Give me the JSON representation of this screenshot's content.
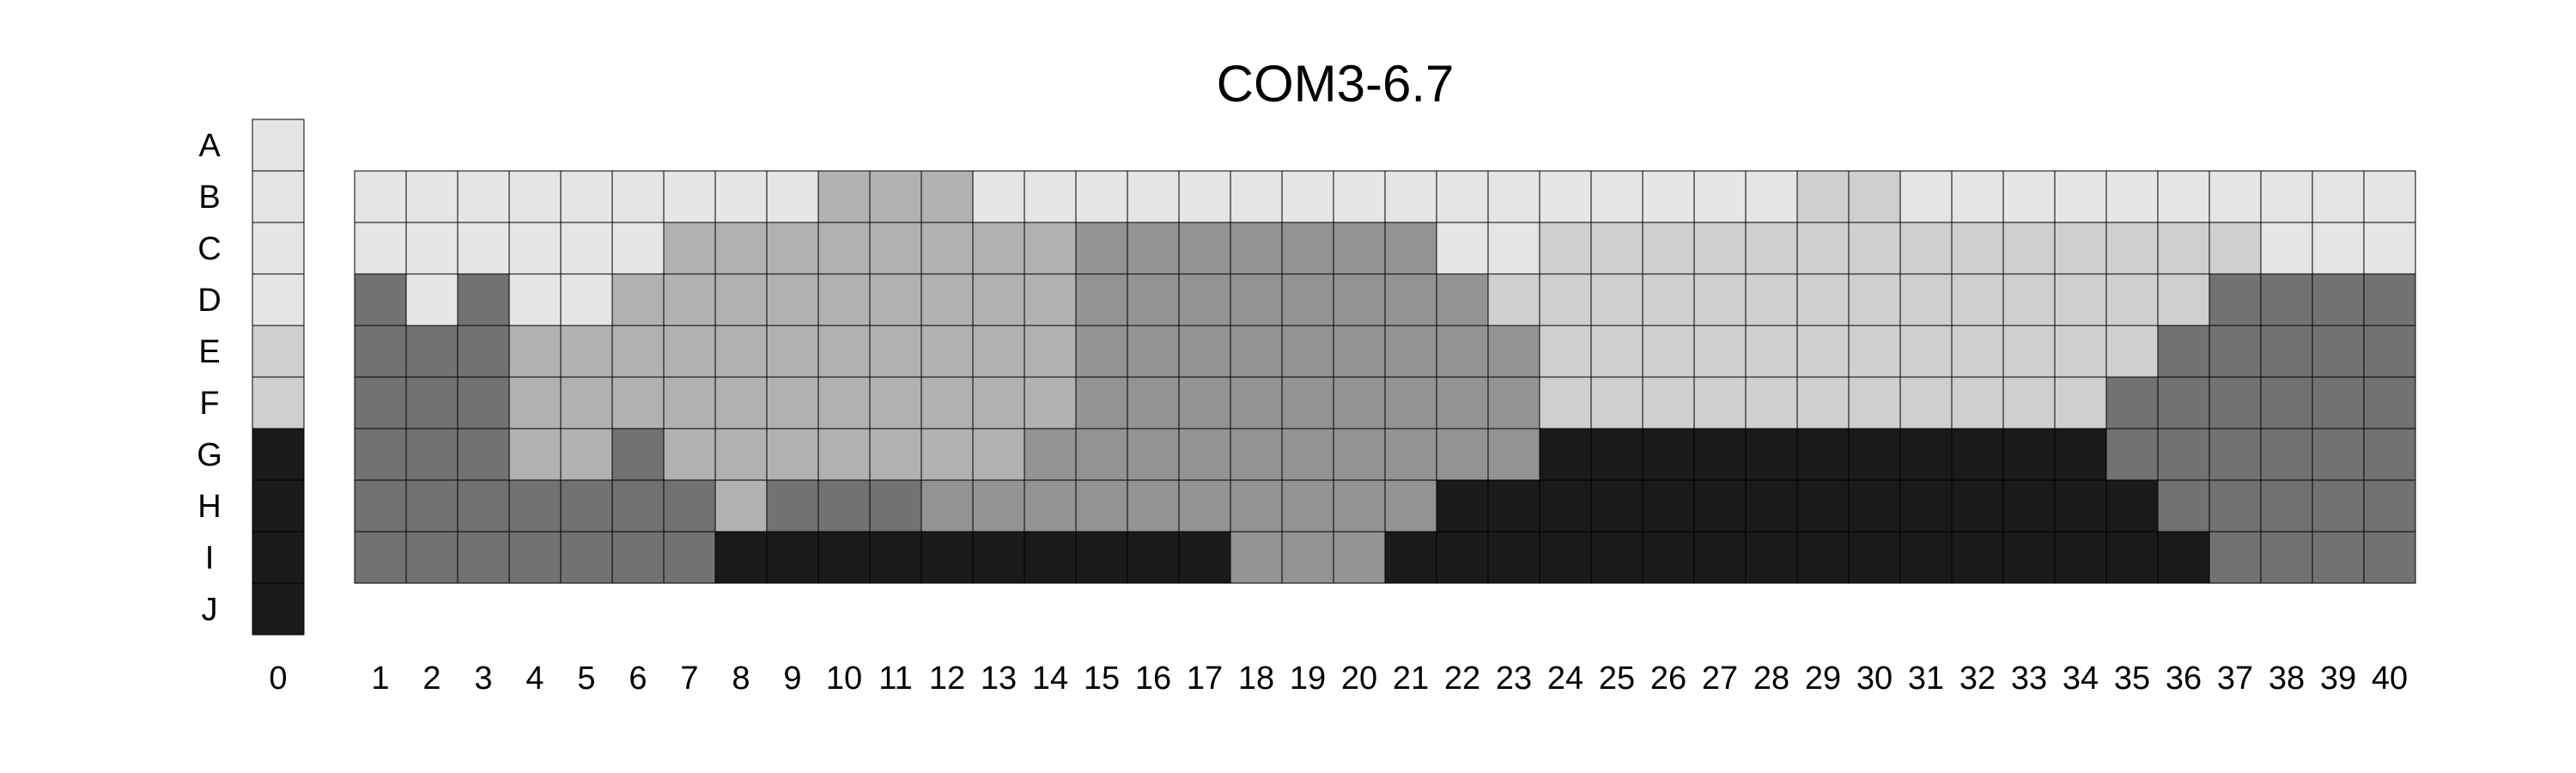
{
  "chart_data": {
    "type": "heatmap",
    "title": "COM3-6.7",
    "rows": [
      "A",
      "B",
      "C",
      "D",
      "E",
      "F",
      "G",
      "H",
      "I",
      "J"
    ],
    "control_column": {
      "label": "0",
      "values": [
        1,
        1,
        1,
        1,
        2,
        2,
        6,
        6,
        6,
        6
      ]
    },
    "columns": [
      "1",
      "2",
      "3",
      "4",
      "5",
      "6",
      "7",
      "8",
      "9",
      "10",
      "11",
      "12",
      "13",
      "14",
      "15",
      "16",
      "17",
      "18",
      "19",
      "20",
      "21",
      "22",
      "23",
      "24",
      "25",
      "26",
      "27",
      "28",
      "29",
      "30",
      "31",
      "32",
      "33",
      "34",
      "35",
      "36",
      "37",
      "38",
      "39",
      "40"
    ],
    "grid_rows": [
      "B",
      "C",
      "D",
      "E",
      "F",
      "G",
      "H",
      "I"
    ],
    "values": [
      [
        1,
        1,
        1,
        1,
        1,
        1,
        1,
        1,
        1,
        3,
        3,
        3,
        1,
        1,
        1,
        1,
        1,
        1,
        1,
        1,
        1,
        1,
        1,
        1,
        1,
        1,
        1,
        1,
        2,
        2,
        1,
        1,
        1,
        1,
        1,
        1,
        1,
        1,
        1,
        1
      ],
      [
        1,
        1,
        1,
        1,
        1,
        1,
        3,
        3,
        3,
        3,
        3,
        3,
        3,
        3,
        4,
        4,
        4,
        4,
        4,
        4,
        4,
        1,
        1,
        2,
        2,
        2,
        2,
        2,
        2,
        2,
        2,
        2,
        2,
        2,
        2,
        2,
        2,
        1,
        1,
        1
      ],
      [
        5,
        1,
        5,
        1,
        1,
        3,
        3,
        3,
        3,
        3,
        3,
        3,
        3,
        3,
        4,
        4,
        4,
        4,
        4,
        4,
        4,
        4,
        2,
        2,
        2,
        2,
        2,
        2,
        2,
        2,
        2,
        2,
        2,
        2,
        2,
        2,
        5,
        5,
        5,
        5
      ],
      [
        5,
        5,
        5,
        3,
        3,
        3,
        3,
        3,
        3,
        3,
        3,
        3,
        3,
        3,
        4,
        4,
        4,
        4,
        4,
        4,
        4,
        4,
        4,
        2,
        2,
        2,
        2,
        2,
        2,
        2,
        2,
        2,
        2,
        2,
        2,
        5,
        5,
        5,
        5,
        5
      ],
      [
        5,
        5,
        5,
        3,
        3,
        3,
        3,
        3,
        3,
        3,
        3,
        3,
        3,
        3,
        4,
        4,
        4,
        4,
        4,
        4,
        4,
        4,
        4,
        2,
        2,
        2,
        2,
        2,
        2,
        2,
        2,
        2,
        2,
        2,
        5,
        5,
        5,
        5,
        5,
        5
      ],
      [
        5,
        5,
        5,
        3,
        3,
        5,
        3,
        3,
        3,
        3,
        3,
        3,
        3,
        4,
        4,
        4,
        4,
        4,
        4,
        4,
        4,
        4,
        4,
        6,
        6,
        6,
        6,
        6,
        6,
        6,
        6,
        6,
        6,
        6,
        5,
        5,
        5,
        5,
        5,
        5
      ],
      [
        5,
        5,
        5,
        5,
        5,
        5,
        5,
        3,
        5,
        5,
        5,
        4,
        4,
        4,
        4,
        4,
        4,
        4,
        4,
        4,
        4,
        6,
        6,
        6,
        6,
        6,
        6,
        6,
        6,
        6,
        6,
        6,
        6,
        6,
        6,
        5,
        5,
        5,
        5,
        5
      ],
      [
        5,
        5,
        5,
        5,
        5,
        5,
        5,
        6,
        6,
        6,
        6,
        6,
        6,
        6,
        6,
        6,
        6,
        4,
        4,
        4,
        6,
        6,
        6,
        6,
        6,
        6,
        6,
        6,
        6,
        6,
        6,
        6,
        6,
        6,
        6,
        6,
        5,
        5,
        5,
        5
      ]
    ],
    "level_colors": {
      "1": "#e5e5e5",
      "2": "#cfcfcf",
      "3": "#b1b1b1",
      "4": "#939393",
      "5": "#727272",
      "6": "#1a1a1a"
    },
    "xlabel": "",
    "ylabel": "",
    "grid": true,
    "legend": "none"
  }
}
